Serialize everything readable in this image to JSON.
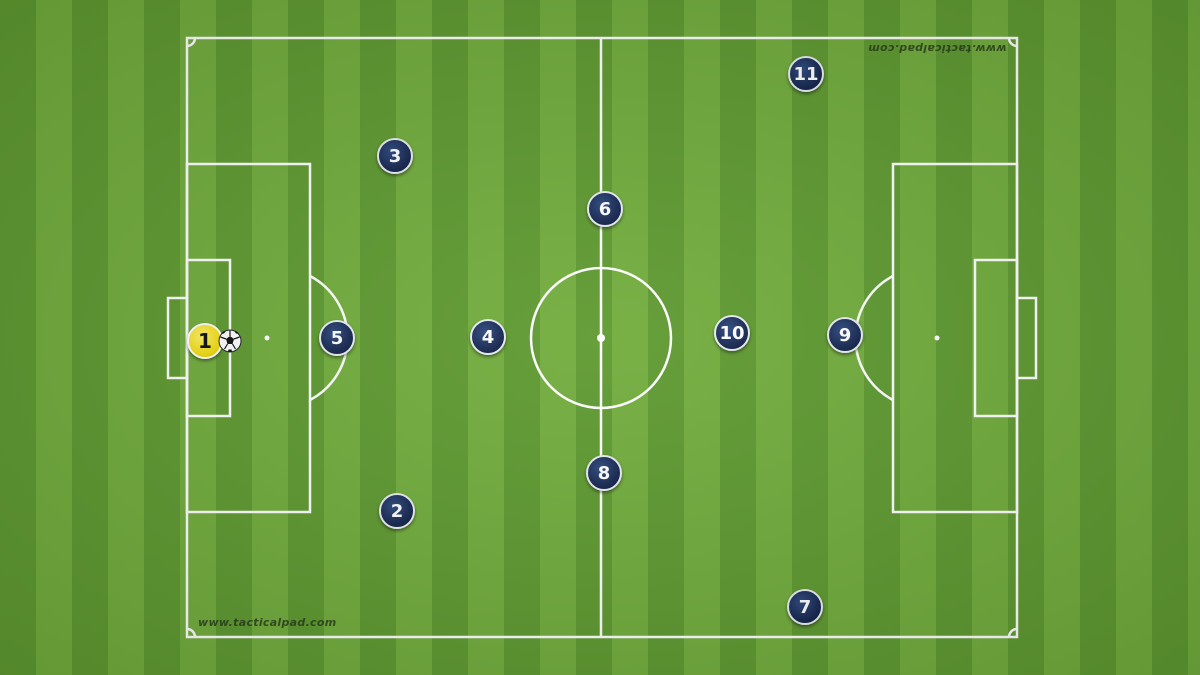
{
  "watermark": {
    "bottom": "www.tacticalpad.com",
    "top": "www.tacticalpad.com"
  },
  "colors": {
    "grass_dark": "#5f9a31",
    "grass_light": "#72ad3d",
    "line": "#ffffff",
    "outfield_player": "#13234a",
    "goalkeeper": "#f2dc12"
  },
  "players": [
    {
      "number": "1",
      "role": "goalkeeper"
    },
    {
      "number": "2",
      "role": "outfield"
    },
    {
      "number": "3",
      "role": "outfield"
    },
    {
      "number": "4",
      "role": "outfield"
    },
    {
      "number": "5",
      "role": "outfield"
    },
    {
      "number": "6",
      "role": "outfield"
    },
    {
      "number": "7",
      "role": "outfield"
    },
    {
      "number": "8",
      "role": "outfield"
    },
    {
      "number": "9",
      "role": "outfield"
    },
    {
      "number": "10",
      "role": "outfield"
    },
    {
      "number": "11",
      "role": "outfield"
    }
  ],
  "ball": {
    "icon": "soccer-ball-icon"
  }
}
